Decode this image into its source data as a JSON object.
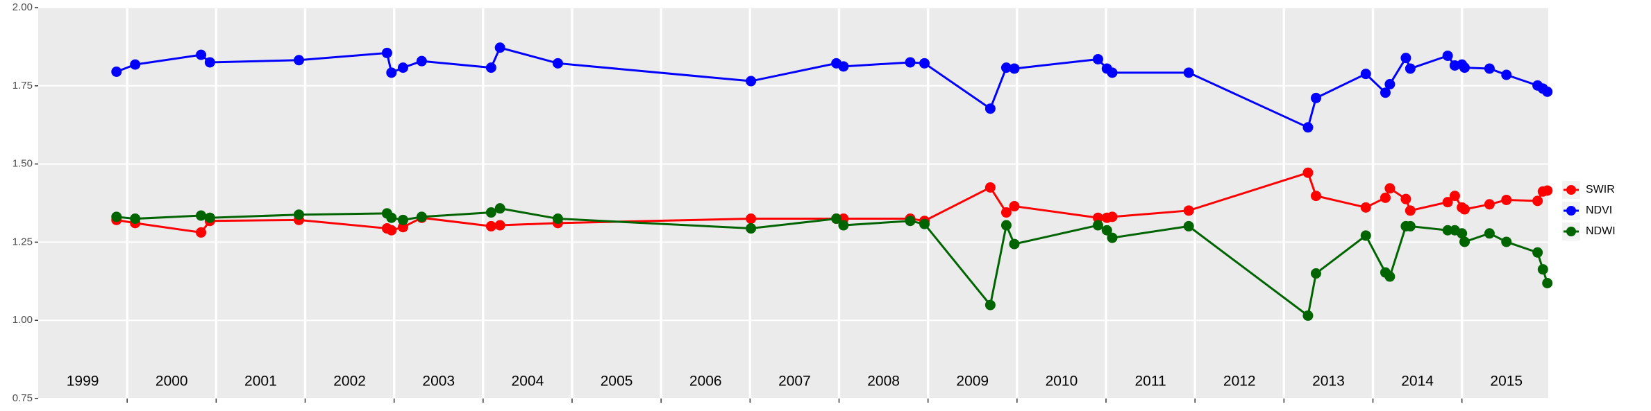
{
  "chart_data": {
    "type": "line",
    "x": [
      1999.88,
      2000.09,
      2000.83,
      2000.93,
      2001.93,
      2002.92,
      2002.97,
      2003.1,
      2003.31,
      2004.09,
      2004.19,
      2004.84,
      2007.01,
      2007.97,
      2008.05,
      2008.8,
      2008.96,
      2009.7,
      2009.88,
      2009.97,
      2010.91,
      2011.01,
      2011.07,
      2011.93,
      2013.27,
      2013.36,
      2013.92,
      2014.14,
      2014.19,
      2014.37,
      2014.42,
      2014.84,
      2014.92,
      2015.0,
      2015.03,
      2015.31,
      2015.5,
      2015.85,
      2015.91,
      2015.96
    ],
    "series": [
      {
        "name": "SWIR",
        "color": "#ff0000",
        "values": [
          1.321,
          1.311,
          1.281,
          1.318,
          1.321,
          1.294,
          1.288,
          1.298,
          1.328,
          1.301,
          1.304,
          1.311,
          1.325,
          1.325,
          1.325,
          1.325,
          1.318,
          1.425,
          1.345,
          1.365,
          1.328,
          1.328,
          1.331,
          1.351,
          1.472,
          1.398,
          1.361,
          1.392,
          1.422,
          1.388,
          1.351,
          1.378,
          1.398,
          1.361,
          1.355,
          1.371,
          1.385,
          1.382,
          1.412,
          1.415
        ]
      },
      {
        "name": "NDVI",
        "color": "#0000ff",
        "values": [
          1.795,
          1.818,
          1.849,
          1.825,
          1.832,
          1.855,
          1.792,
          1.808,
          1.829,
          1.808,
          1.872,
          1.822,
          1.765,
          1.822,
          1.812,
          1.825,
          1.822,
          1.677,
          1.808,
          1.805,
          1.835,
          1.805,
          1.792,
          1.792,
          1.617,
          1.711,
          1.788,
          1.728,
          1.755,
          1.839,
          1.805,
          1.846,
          1.815,
          1.818,
          1.808,
          1.805,
          1.785,
          1.751,
          1.741,
          1.731
        ]
      },
      {
        "name": "NDWI",
        "color": "#006400",
        "values": [
          1.331,
          1.325,
          1.335,
          1.328,
          1.338,
          1.342,
          1.328,
          1.321,
          1.331,
          1.345,
          1.358,
          1.325,
          1.294,
          1.325,
          1.304,
          1.318,
          1.308,
          1.049,
          1.304,
          1.244,
          1.304,
          1.288,
          1.264,
          1.301,
          1.015,
          1.15,
          1.271,
          1.153,
          1.14,
          1.301,
          1.301,
          1.288,
          1.288,
          1.278,
          1.251,
          1.278,
          1.251,
          1.217,
          1.163,
          1.119
        ]
      }
    ],
    "xlim": [
      1999.0,
      2015.97
    ],
    "xticks": [
      {
        "value": 1999.5,
        "label": "1999"
      },
      {
        "value": 2000.5,
        "label": "2000"
      },
      {
        "value": 2001.5,
        "label": "2001"
      },
      {
        "value": 2002.5,
        "label": "2002"
      },
      {
        "value": 2003.5,
        "label": "2003"
      },
      {
        "value": 2004.5,
        "label": "2004"
      },
      {
        "value": 2005.5,
        "label": "2005"
      },
      {
        "value": 2006.5,
        "label": "2006"
      },
      {
        "value": 2007.5,
        "label": "2007"
      },
      {
        "value": 2008.5,
        "label": "2008"
      },
      {
        "value": 2009.5,
        "label": "2009"
      },
      {
        "value": 2010.5,
        "label": "2010"
      },
      {
        "value": 2011.5,
        "label": "2011"
      },
      {
        "value": 2012.5,
        "label": "2012"
      },
      {
        "value": 2013.5,
        "label": "2013"
      },
      {
        "value": 2014.5,
        "label": "2014"
      },
      {
        "value": 2015.5,
        "label": "2015"
      }
    ],
    "xgrid": [
      2000,
      2001,
      2002,
      2003,
      2004,
      2005,
      2006,
      2007,
      2008,
      2009,
      2010,
      2011,
      2012,
      2013,
      2014,
      2015
    ],
    "ylim": [
      0.75,
      2.0
    ],
    "yticks": [
      0.75,
      {
        "value": 1.0,
        "label": "1.00"
      },
      1.25,
      {
        "value": 1.5,
        "label": "1.50"
      },
      1.75,
      {
        "value": 2.0,
        "label": "2.00"
      }
    ],
    "grid": true,
    "legend": "right"
  }
}
